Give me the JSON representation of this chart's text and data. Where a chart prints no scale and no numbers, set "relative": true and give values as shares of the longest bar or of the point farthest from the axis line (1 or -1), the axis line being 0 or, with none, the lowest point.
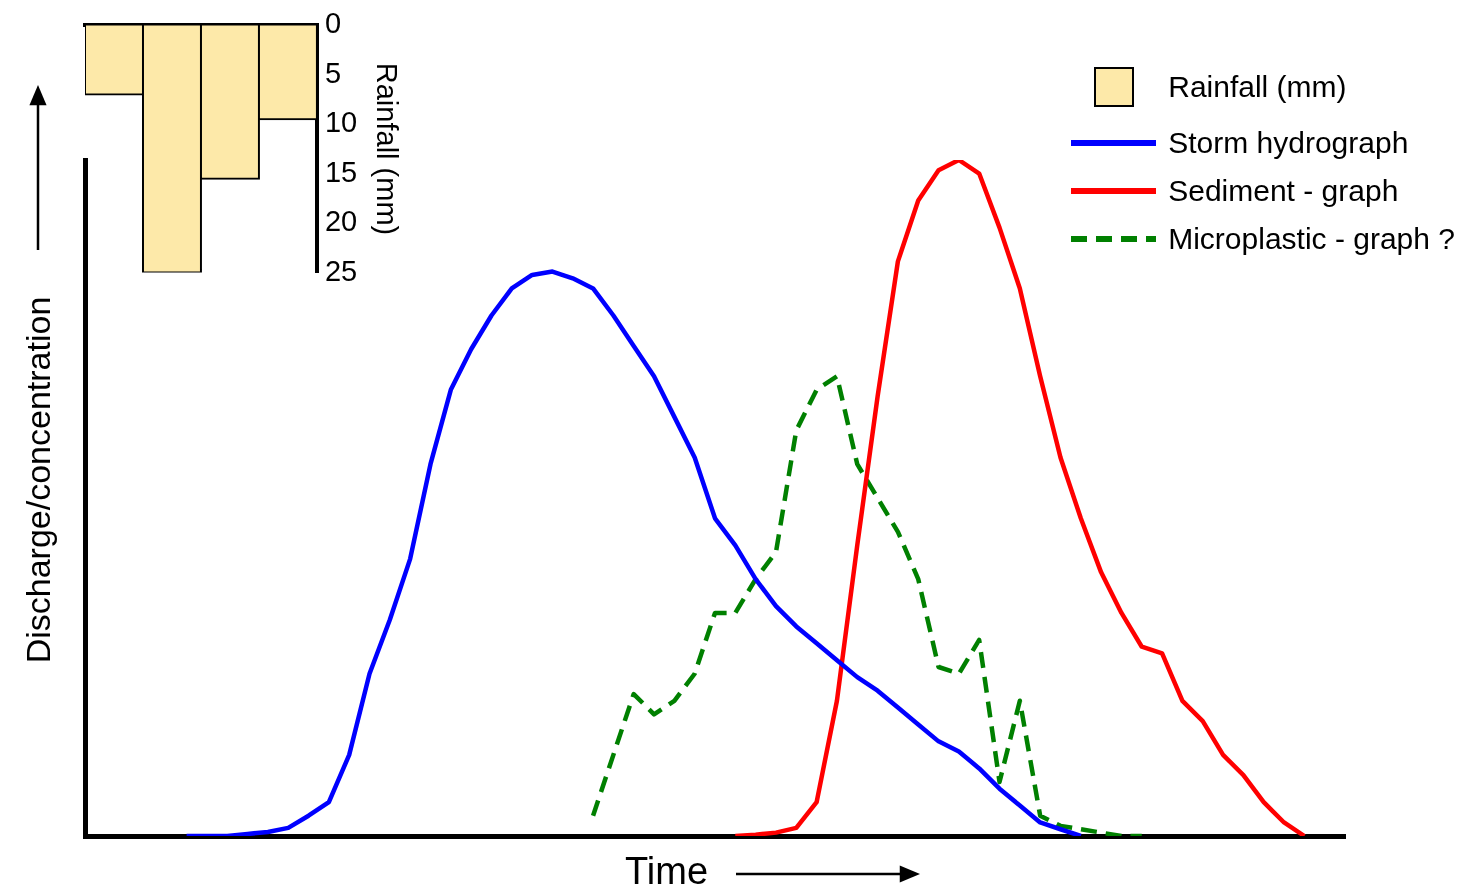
{
  "chart_data": [
    {
      "type": "bar",
      "ylabel": "Rainfall (mm)",
      "categories": [
        null,
        null,
        null,
        null
      ],
      "series": [
        {
          "name": "Rainfall (mm)",
          "color": "#fde9a9",
          "values": [
            7,
            25,
            15.5,
            9.5
          ]
        }
      ],
      "ylim": [
        25,
        0
      ],
      "yticks": [
        0,
        5,
        10,
        15,
        20,
        25
      ],
      "grid": false,
      "legend": "top right",
      "tick_labels": "y"
    },
    {
      "type": "line",
      "relative": true,
      "xlabel": "Time",
      "ylabel": "Discharge/concentration",
      "grid": false,
      "legend": "top right",
      "marker": "none",
      "categories": [
        null,
        null,
        null,
        null,
        null,
        null,
        null,
        null,
        null,
        null,
        null,
        null,
        null,
        null,
        null,
        null,
        null,
        null,
        null,
        null,
        null,
        null,
        null,
        null,
        null,
        null,
        null,
        null,
        null,
        null,
        null,
        null,
        null,
        null,
        null,
        null,
        null,
        null,
        null,
        null,
        null,
        null,
        null,
        null,
        null,
        null,
        null,
        null,
        null,
        null,
        null,
        null,
        null,
        null,
        null,
        null,
        null,
        null,
        null,
        null,
        null,
        null,
        null
      ],
      "series": [
        {
          "name": "Storm hydrograph",
          "color": "#0000ff",
          "line_style": "solid",
          "values": [
            null,
            null,
            null,
            null,
            null,
            0,
            0,
            0,
            0.003,
            0.006,
            0.012,
            0.03,
            0.05,
            0.12,
            0.24,
            0.32,
            0.41,
            0.55,
            0.66,
            0.72,
            0.77,
            0.81,
            0.83,
            0.835,
            0.825,
            0.81,
            0.77,
            0.725,
            0.68,
            0.62,
            0.56,
            0.47,
            0.43,
            0.38,
            0.34,
            0.31,
            0.285,
            0.26,
            0.235,
            0.215,
            0.19,
            0.165,
            0.14,
            0.125,
            0.1,
            0.07,
            0.045,
            0.02,
            0.01,
            0,
            null,
            null,
            null,
            null,
            null,
            null,
            null,
            null,
            null,
            null,
            null,
            null,
            null
          ]
        },
        {
          "name": "Sediment - graph",
          "color": "#ff0000",
          "line_style": "solid",
          "values": [
            null,
            null,
            null,
            null,
            null,
            null,
            null,
            null,
            null,
            null,
            null,
            null,
            null,
            null,
            null,
            null,
            null,
            null,
            null,
            null,
            null,
            null,
            null,
            null,
            null,
            null,
            null,
            null,
            null,
            null,
            null,
            null,
            0,
            0.002,
            0.005,
            0.012,
            0.05,
            0.2,
            0.43,
            0.65,
            0.85,
            0.94,
            0.985,
            1,
            0.98,
            0.9,
            0.81,
            0.68,
            0.56,
            0.47,
            0.39,
            0.33,
            0.28,
            0.27,
            0.2,
            0.17,
            0.12,
            0.09,
            0.05,
            0.02,
            0,
            null,
            null
          ]
        },
        {
          "name": "Microplastic - graph ?",
          "color": "#008000",
          "line_style": "dashed",
          "values": [
            null,
            null,
            null,
            null,
            null,
            null,
            null,
            null,
            null,
            null,
            null,
            null,
            null,
            null,
            null,
            null,
            null,
            null,
            null,
            null,
            null,
            null,
            null,
            null,
            null,
            0.03,
            0.12,
            0.21,
            0.18,
            0.2,
            0.24,
            0.33,
            0.33,
            0.38,
            0.42,
            0.6,
            0.66,
            0.68,
            0.55,
            0.5,
            0.45,
            0.38,
            0.25,
            0.24,
            0.29,
            0.08,
            0.2,
            0.03,
            0.015,
            0.01,
            0.005,
            0,
            0,
            null,
            null,
            null,
            null,
            null,
            null,
            null,
            null,
            null,
            null
          ]
        }
      ]
    }
  ]
}
